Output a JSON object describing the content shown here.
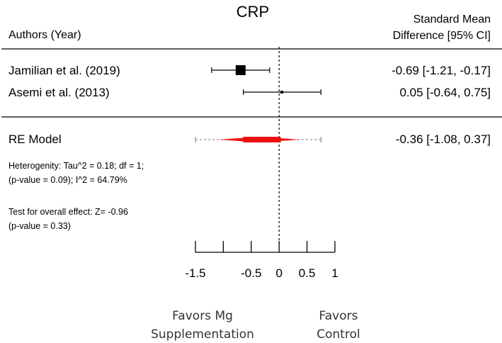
{
  "chart_data": {
    "type": "forest",
    "title": "CRP",
    "column_left_header": "Authors (Year)",
    "column_right_header_line1": "Standard Mean",
    "column_right_header_line2": "Difference [95% CI]",
    "xlim": [
      -1.5,
      1
    ],
    "ticks": [
      -1.5,
      -1,
      -0.5,
      0,
      0.5,
      1
    ],
    "tick_labels": [
      "-1.5",
      "",
      "-0.5",
      "0",
      "0.5",
      "1"
    ],
    "studies": [
      {
        "label": "Jamilian et al. (2019)",
        "estimate": -0.69,
        "ci_low": -1.21,
        "ci_high": -0.17,
        "ci_text": "-0.69 [-1.21, -0.17]",
        "weight": 0.62
      },
      {
        "label": "Asemi et al. (2013)",
        "estimate": 0.05,
        "ci_low": -0.64,
        "ci_high": 0.75,
        "ci_text": "0.05 [-0.64,  0.75]",
        "weight": 0.05
      }
    ],
    "pooled": {
      "label": "RE Model",
      "estimate": -0.36,
      "ci_low": -1.08,
      "ci_high": 0.37,
      "pi_low": -1.5,
      "pi_high": 0.75,
      "ci_text": "-0.36 [-1.08,  0.37]",
      "color": "#ee1111"
    },
    "heterogeneity_line1": "Heterogenity: Tau^2 = 0.18; df = 1;",
    "heterogeneity_line2": "(p-value = 0.09); I^2 = 64.79%",
    "overall_effect_line1": "Test for overall effect: Z= -0.96",
    "overall_effect_line2": "(p-value = 0.33)",
    "favors_left_line1": "Favors Mg",
    "favors_left_line2": "Supplementation",
    "favors_right_line1": "Favors",
    "favors_right_line2": "Control"
  }
}
